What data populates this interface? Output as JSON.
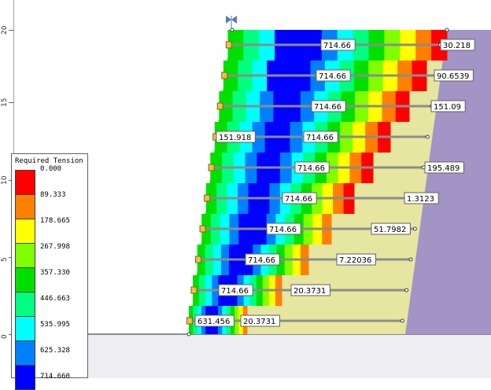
{
  "y_axis": {
    "ticks": [
      "20",
      "15",
      "10",
      "5",
      "0"
    ]
  },
  "legend": {
    "title": "Required Tension",
    "entries": [
      {
        "label": "0.000",
        "color": "#ff0000"
      },
      {
        "label": "89.333",
        "color": "#ff8000"
      },
      {
        "label": "178.665",
        "color": "#ffff00"
      },
      {
        "label": "267.998",
        "color": "#80ff00"
      },
      {
        "label": "357.330",
        "color": "#00e000"
      },
      {
        "label": "446.663",
        "color": "#00ff80"
      },
      {
        "label": "535.995",
        "color": "#00ffff"
      },
      {
        "label": "625.328",
        "color": "#0080ff"
      },
      {
        "label": "714.660",
        "color": "#0000ff"
      }
    ]
  },
  "colors": {
    "soil": "#e6e6a0",
    "wall_face": "#a394c6",
    "foundation": "#eeeef2",
    "reinforcement": "#8c8c8c",
    "label_bg": "#ffffff"
  },
  "reinforcement_labels": [
    {
      "row": 1,
      "labels": [
        "714.66",
        "30.218"
      ]
    },
    {
      "row": 2,
      "labels": [
        "714.66",
        "90.6539"
      ]
    },
    {
      "row": 3,
      "labels": [
        "714.66",
        "151.09"
      ]
    },
    {
      "row": 4,
      "labels": [
        "151.918",
        "714.66"
      ]
    },
    {
      "row": 5,
      "labels": [
        "714.66",
        "195.489"
      ]
    },
    {
      "row": 6,
      "labels": [
        "714.66",
        "1.3123"
      ]
    },
    {
      "row": 7,
      "labels": [
        "714.66",
        "51.7982"
      ]
    },
    {
      "row": 8,
      "labels": [
        "714.66",
        "7.22036"
      ]
    },
    {
      "row": 9,
      "labels": [
        "714.66",
        "20.3731"
      ]
    },
    {
      "row": 10,
      "labels": [
        "631.456",
        "20.3731"
      ]
    }
  ]
}
